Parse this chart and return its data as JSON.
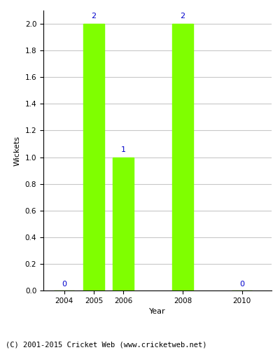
{
  "years": [
    2004,
    2005,
    2006,
    2008,
    2010
  ],
  "wickets": [
    0,
    2,
    1,
    2,
    0
  ],
  "bar_color": "#7fff00",
  "bar_width": 0.7,
  "xlabel": "Year",
  "ylabel": "Wickets",
  "ylim": [
    0,
    2.1
  ],
  "yticks": [
    0.0,
    0.2,
    0.4,
    0.6,
    0.8,
    1.0,
    1.2,
    1.4,
    1.6,
    1.8,
    2.0
  ],
  "label_color": "#0000cc",
  "label_fontsize": 8,
  "axis_label_fontsize": 8,
  "tick_fontsize": 7.5,
  "grid_color": "#c8c8c8",
  "background_color": "#ffffff",
  "footer_text": "(C) 2001-2015 Cricket Web (www.cricketweb.net)",
  "footer_fontsize": 7.5,
  "xlim": [
    2003.3,
    2011.0
  ]
}
